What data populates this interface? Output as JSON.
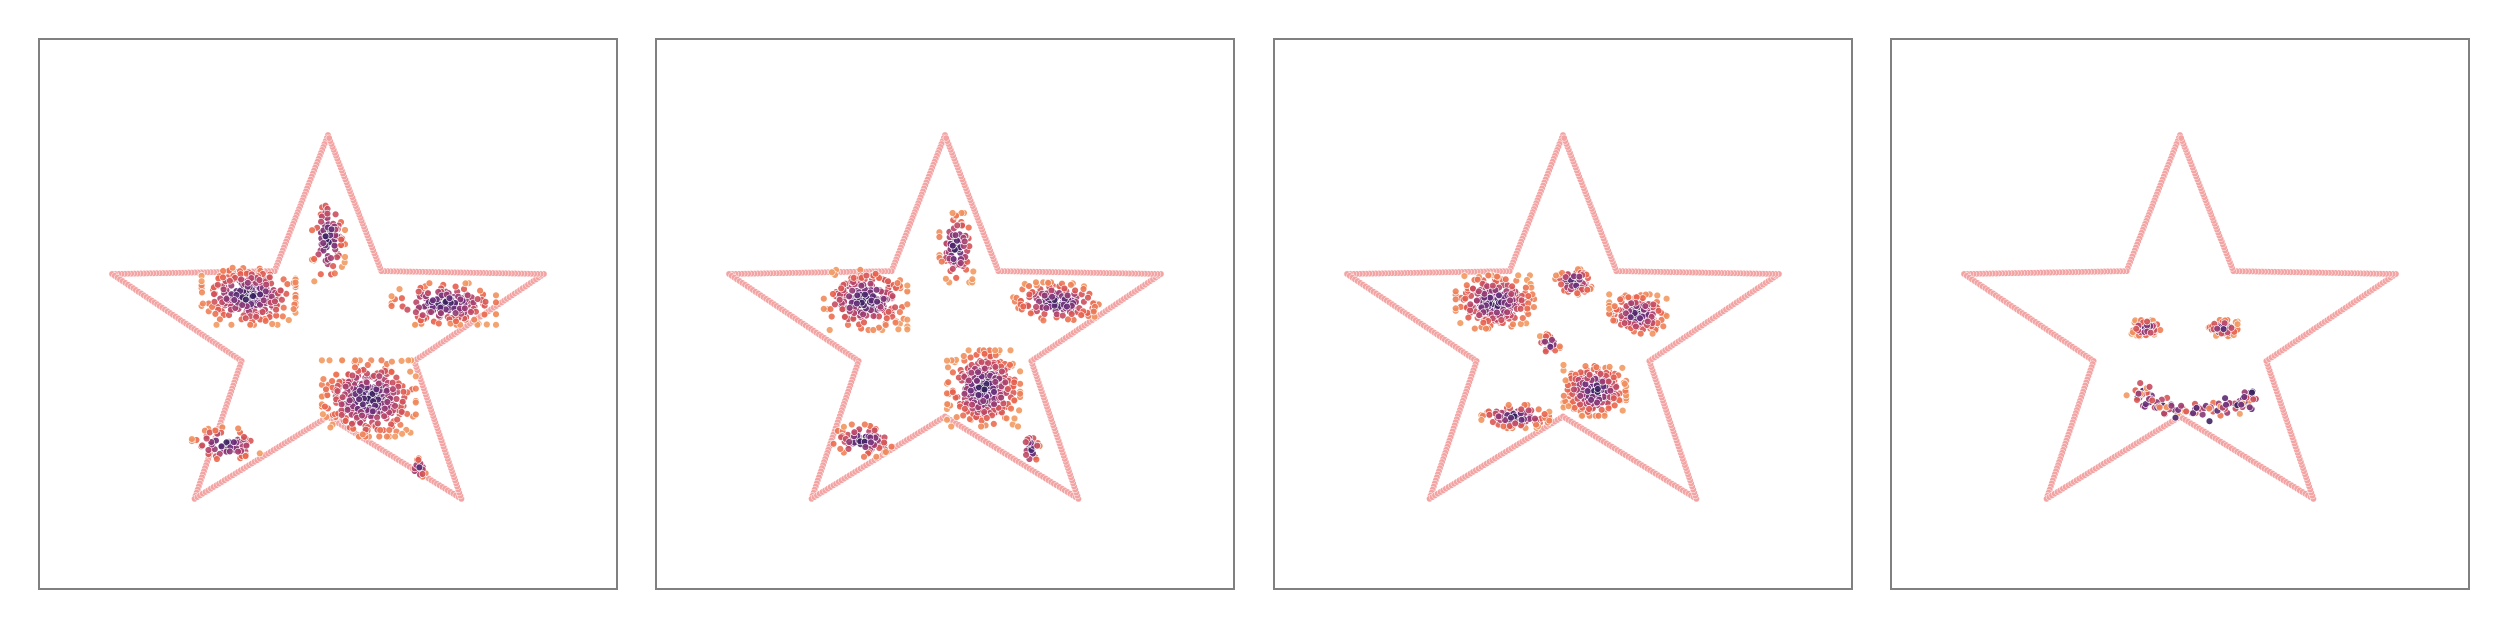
{
  "chart_data": [
    {
      "type": "scatter",
      "title": "",
      "xlabel": "",
      "ylabel": "",
      "xlim": [
        -1.0,
        1.0
      ],
      "ylim": [
        -1.0,
        1.0
      ],
      "axes_visible": false,
      "boundary": "star",
      "series": [
        {
          "role": "boundary",
          "color": "#f4a3a3"
        },
        {
          "role": "particles",
          "color_scale": [
            "#2d1e59",
            "#6b2f7b",
            "#b4436c",
            "#e9604b",
            "#f29a62"
          ],
          "clusters": [
            {
              "cx": -0.35,
              "cy": 0.06,
              "w": 0.36,
              "h": 0.25,
              "n": 260
            },
            {
              "cx": 0.0,
              "cy": 0.34,
              "w": 0.13,
              "h": 0.36,
              "n": 90
            },
            {
              "cx": 0.51,
              "cy": 0.02,
              "w": 0.4,
              "h": 0.18,
              "n": 170
            },
            {
              "cx": 0.18,
              "cy": -0.45,
              "w": 0.36,
              "h": 0.33,
              "n": 360
            },
            {
              "cx": -0.45,
              "cy": -0.68,
              "w": 0.26,
              "h": 0.15,
              "n": 70
            },
            {
              "cx": 0.4,
              "cy": -0.8,
              "w": 0.06,
              "h": 0.09,
              "n": 15
            }
          ]
        }
      ]
    },
    {
      "type": "scatter",
      "title": "",
      "xlabel": "",
      "ylabel": "",
      "xlim": [
        -1.0,
        1.0
      ],
      "ylim": [
        -1.0,
        1.0
      ],
      "axes_visible": false,
      "boundary": "star",
      "series": [
        {
          "role": "boundary",
          "color": "#f4a3a3"
        },
        {
          "role": "particles",
          "color_scale": [
            "#2d1e59",
            "#6b2f7b",
            "#b4436c",
            "#e9604b",
            "#f29a62"
          ],
          "clusters": [
            {
              "cx": -0.35,
              "cy": 0.04,
              "w": 0.32,
              "h": 0.26,
              "n": 240
            },
            {
              "cx": 0.05,
              "cy": 0.3,
              "w": 0.13,
              "h": 0.3,
              "n": 90
            },
            {
              "cx": 0.49,
              "cy": 0.03,
              "w": 0.33,
              "h": 0.17,
              "n": 150
            },
            {
              "cx": 0.17,
              "cy": -0.4,
              "w": 0.28,
              "h": 0.33,
              "n": 330
            },
            {
              "cx": -0.36,
              "cy": -0.66,
              "w": 0.24,
              "h": 0.14,
              "n": 80
            },
            {
              "cx": 0.38,
              "cy": -0.7,
              "w": 0.07,
              "h": 0.15,
              "n": 25
            }
          ]
        }
      ]
    },
    {
      "type": "scatter",
      "title": "",
      "xlabel": "",
      "ylabel": "",
      "xlim": [
        -1.0,
        1.0
      ],
      "ylim": [
        -1.0,
        1.0
      ],
      "axes_visible": false,
      "boundary": "star",
      "series": [
        {
          "role": "boundary",
          "color": "#f4a3a3"
        },
        {
          "role": "particles",
          "color_scale": [
            "#2d1e59",
            "#6b2f7b",
            "#b4436c",
            "#e9604b",
            "#f29a62"
          ],
          "clusters": [
            {
              "cx": -0.3,
              "cy": 0.03,
              "w": 0.3,
              "h": 0.23,
              "n": 250
            },
            {
              "cx": 0.05,
              "cy": 0.13,
              "w": 0.15,
              "h": 0.11,
              "n": 70
            },
            {
              "cx": 0.33,
              "cy": -0.03,
              "w": 0.22,
              "h": 0.17,
              "n": 170
            },
            {
              "cx": 0.14,
              "cy": -0.41,
              "w": 0.24,
              "h": 0.22,
              "n": 260
            },
            {
              "cx": -0.21,
              "cy": -0.54,
              "w": 0.26,
              "h": 0.1,
              "n": 100
            },
            {
              "cx": -0.06,
              "cy": -0.18,
              "w": 0.08,
              "h": 0.09,
              "n": 30
            }
          ]
        }
      ]
    },
    {
      "type": "scatter",
      "title": "",
      "xlabel": "",
      "ylabel": "",
      "xlim": [
        -1.0,
        1.0
      ],
      "ylim": [
        -1.0,
        1.0
      ],
      "axes_visible": false,
      "boundary": "star",
      "series": [
        {
          "role": "boundary",
          "color": "#f4a3a3"
        },
        {
          "role": "particles",
          "color_scale": [
            "#2d1e59",
            "#6b2f7b",
            "#b4436c",
            "#e9604b",
            "#f29a62"
          ],
          "clusters": [
            {
              "cx": -0.15,
              "cy": -0.1,
              "w": 0.11,
              "h": 0.07,
              "n": 90
            },
            {
              "cx": 0.19,
              "cy": -0.1,
              "w": 0.11,
              "h": 0.07,
              "n": 90
            },
            {
              "cx": 0.07,
              "cy": -0.41,
              "w": 0.18,
              "h": 0.06,
              "n": 110,
              "shape": "smile"
            }
          ]
        }
      ]
    }
  ]
}
